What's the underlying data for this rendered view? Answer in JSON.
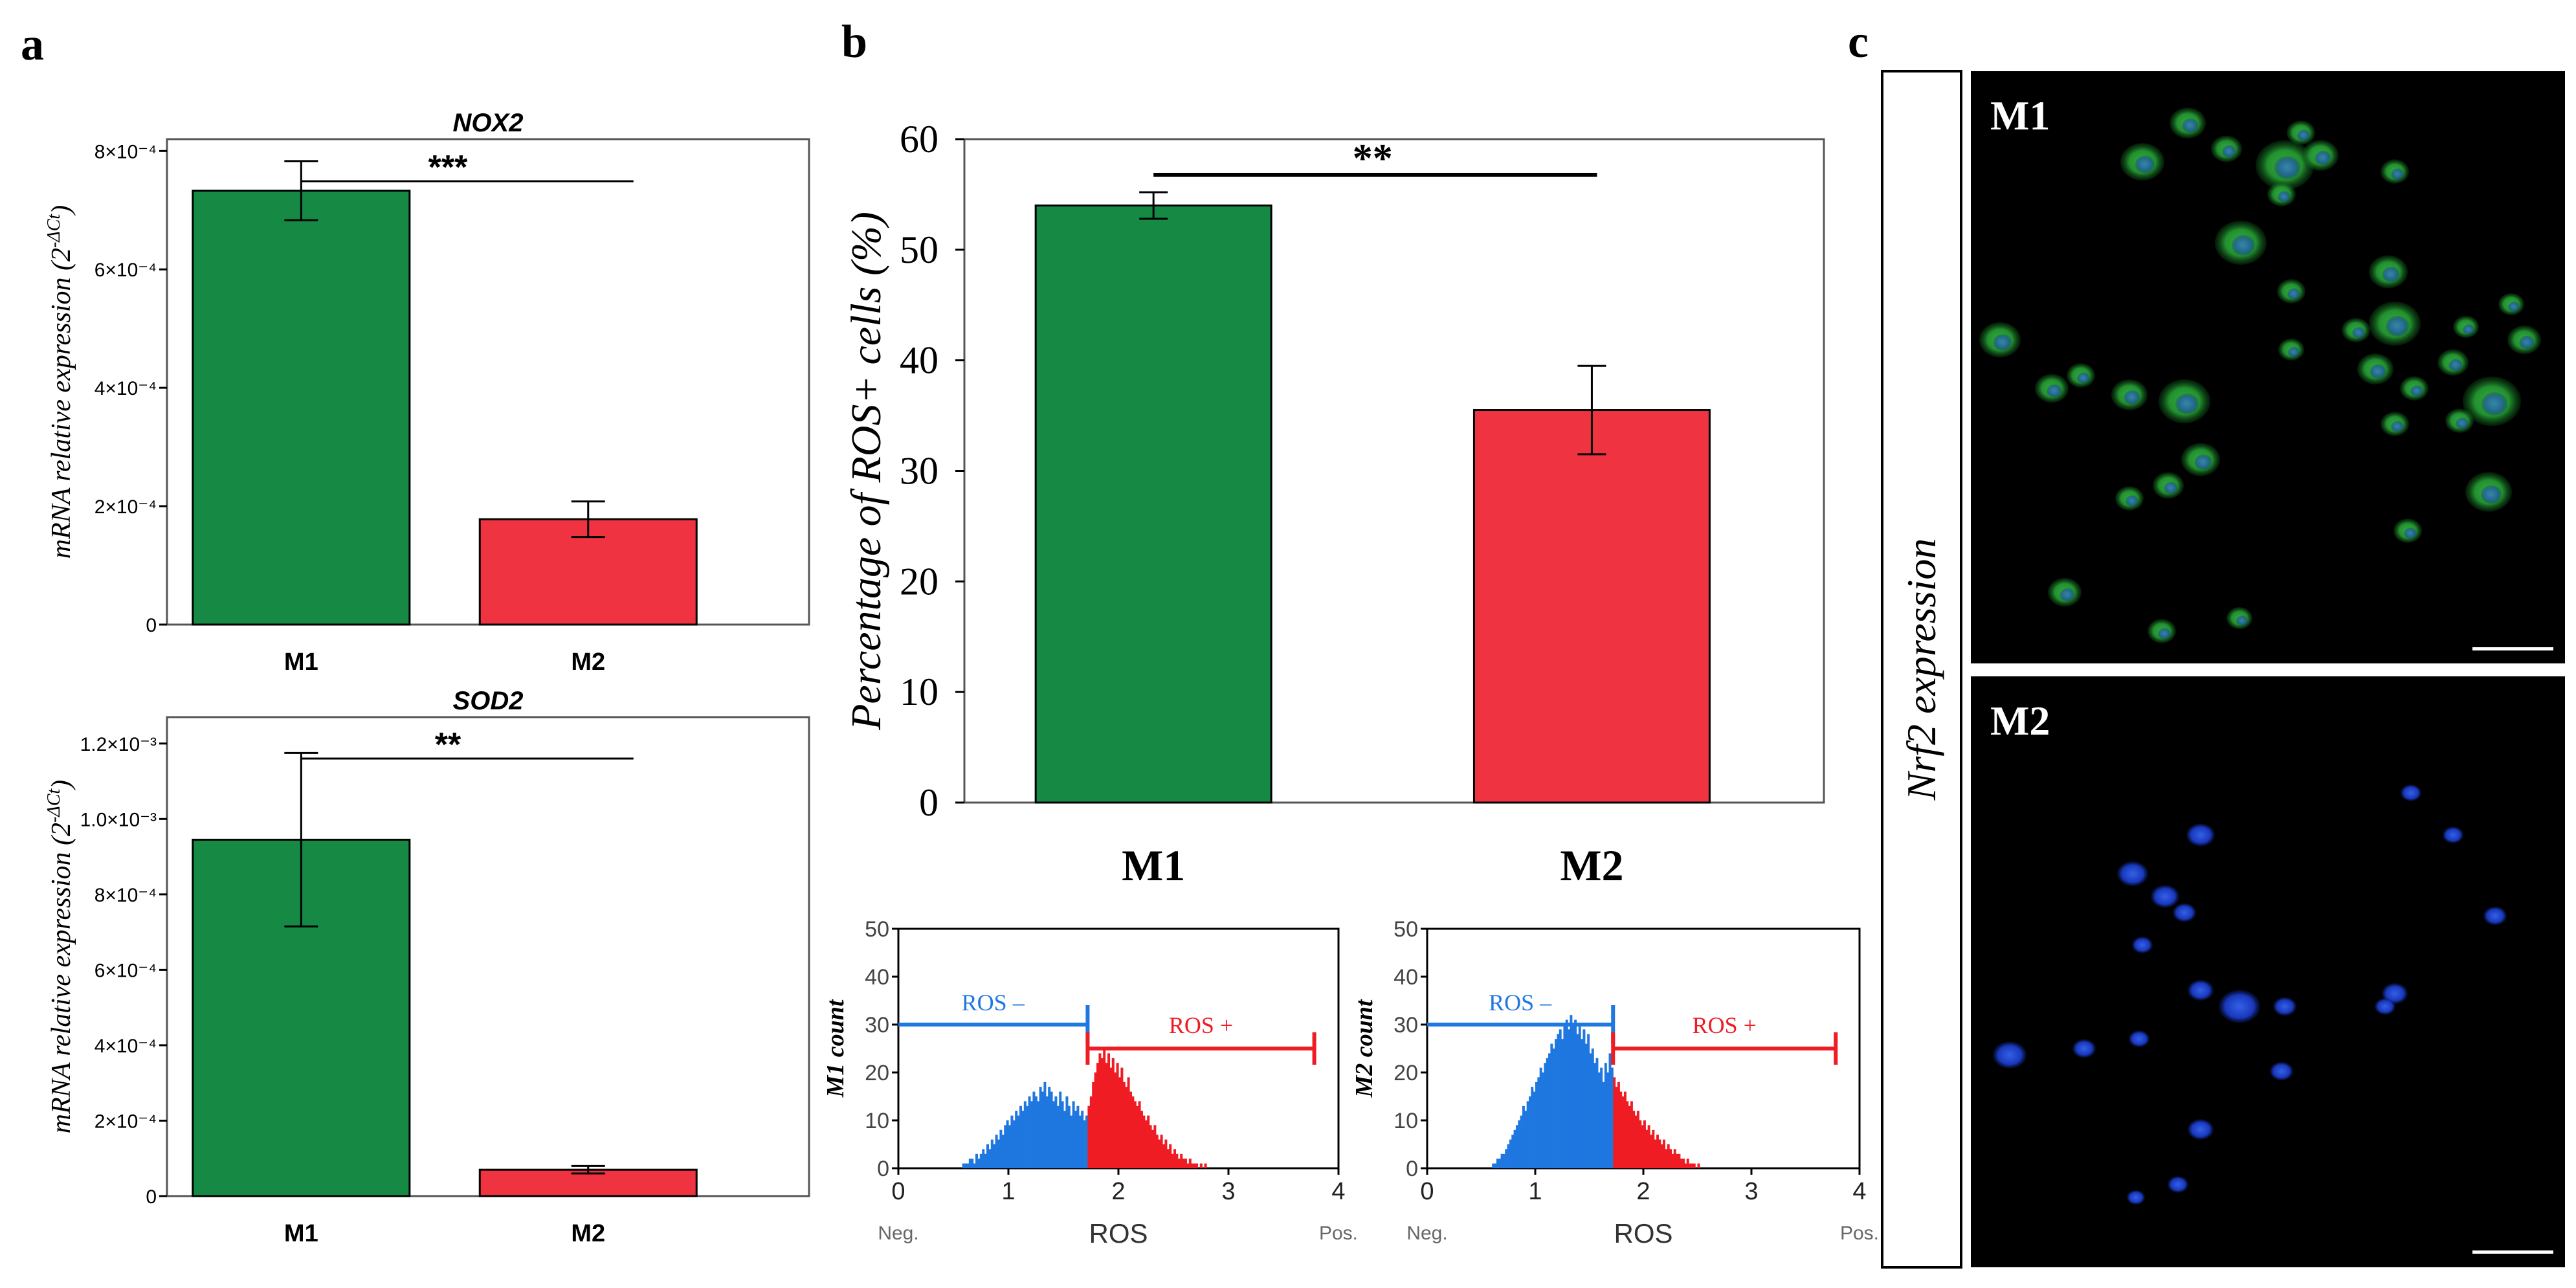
{
  "figure": {
    "panel_a_label": "a",
    "panel_b_label": "b",
    "panel_c_label": "c"
  },
  "colors": {
    "m1": "#168a45",
    "m2": "#ef3340",
    "ros_neg": "#1f77e0",
    "ros_pos": "#ef1c24",
    "micro_bg": "#000000",
    "micro_green": "#2ea83a",
    "micro_blue": "#1a3fd0"
  },
  "chart_data": [
    {
      "id": "nox2",
      "type": "bar",
      "title": "NOX2",
      "ylabel_main": "mRNA relative expression (2",
      "ylabel_sup": "-ΔCt",
      "ylabel_tail": ")",
      "categories": [
        "M1",
        "M2"
      ],
      "values": [
        0.000733,
        0.000178
      ],
      "errors": [
        5e-05,
        3e-05
      ],
      "ylim": [
        0,
        0.00082
      ],
      "ticks": [
        {
          "value": 0,
          "label": "0"
        },
        {
          "value": 0.0002,
          "label": "2×10⁻⁴"
        },
        {
          "value": 0.0004,
          "label": "4×10⁻⁴"
        },
        {
          "value": 0.0006,
          "label": "6×10⁻⁴"
        },
        {
          "value": 0.0008,
          "label": "8×10⁻⁴"
        }
      ],
      "significance": "***"
    },
    {
      "id": "sod2",
      "type": "bar",
      "title": "SOD2",
      "ylabel_main": "mRNA relative expression (2",
      "ylabel_sup": "-ΔCt",
      "ylabel_tail": ")",
      "categories": [
        "M1",
        "M2"
      ],
      "values": [
        0.000945,
        7e-05
      ],
      "errors": [
        0.00023,
        1e-05
      ],
      "ylim": [
        0,
        0.00127
      ],
      "ticks": [
        {
          "value": 0,
          "label": "0"
        },
        {
          "value": 0.0002,
          "label": "2×10⁻⁴"
        },
        {
          "value": 0.0004,
          "label": "4×10⁻⁴"
        },
        {
          "value": 0.0006,
          "label": "6×10⁻⁴"
        },
        {
          "value": 0.0008,
          "label": "8×10⁻⁴"
        },
        {
          "value": 0.001,
          "label": "1.0×10⁻³"
        },
        {
          "value": 0.0012,
          "label": "1.2×10⁻³"
        }
      ],
      "significance": "**"
    },
    {
      "id": "ros_percent",
      "type": "bar",
      "title": "",
      "ylabel": "Percentage of ROS+ cells (%)",
      "categories": [
        "M1",
        "M2"
      ],
      "values": [
        54,
        35.5
      ],
      "errors": [
        1.2,
        4
      ],
      "ylim": [
        0,
        60
      ],
      "ticks": [
        {
          "value": 0,
          "label": "0"
        },
        {
          "value": 10,
          "label": "10"
        },
        {
          "value": 20,
          "label": "20"
        },
        {
          "value": 30,
          "label": "30"
        },
        {
          "value": 40,
          "label": "40"
        },
        {
          "value": 50,
          "label": "50"
        },
        {
          "value": 60,
          "label": "60"
        }
      ],
      "significance": "**"
    },
    {
      "id": "hist_m1",
      "type": "histogram",
      "ylabel": "M1 count",
      "xlabel": "ROS",
      "x_left_label": "Neg.",
      "x_right_label": "Pos.",
      "xlim": [
        0,
        4
      ],
      "ylim": [
        0,
        50
      ],
      "xticks": [
        "0",
        "1",
        "2",
        "3",
        "4"
      ],
      "yticks": [
        "0",
        "10",
        "20",
        "30",
        "40",
        "50"
      ],
      "gate": 1.72,
      "neg_label": "ROS –",
      "pos_label": "ROS +",
      "neg_gate": {
        "from": 0,
        "to": 1.72,
        "y": 30
      },
      "pos_gate": {
        "from": 1.72,
        "to": 3.78,
        "y": 25
      },
      "bin_width": 0.02,
      "counts": [
        0,
        0,
        0,
        0,
        0,
        0,
        0,
        0,
        0,
        0,
        0,
        0,
        0,
        0,
        0,
        0,
        0,
        0,
        0,
        0,
        0,
        0,
        0,
        0,
        0,
        0,
        0,
        0,
        0,
        1,
        1,
        1,
        2,
        2,
        1,
        3,
        2,
        3,
        4,
        3,
        5,
        4,
        6,
        5,
        7,
        6,
        8,
        7,
        9,
        10,
        9,
        11,
        10,
        12,
        11,
        13,
        12,
        14,
        13,
        15,
        14,
        16,
        15,
        14,
        17,
        16,
        18,
        15,
        17,
        16,
        14,
        15,
        13,
        16,
        14,
        12,
        15,
        13,
        11,
        14,
        12,
        13,
        11,
        12,
        10,
        11,
        13,
        15,
        18,
        20,
        22,
        24,
        23,
        25,
        22,
        24,
        21,
        23,
        20,
        22,
        19,
        21,
        18,
        17,
        19,
        16,
        15,
        14,
        13,
        14,
        12,
        11,
        10,
        11,
        9,
        8,
        9,
        7,
        6,
        7,
        5,
        6,
        4,
        5,
        3,
        4,
        3,
        2,
        3,
        2,
        2,
        1,
        2,
        1,
        1,
        1,
        0,
        1,
        0,
        1,
        0,
        0,
        0,
        0,
        0,
        0,
        0,
        0,
        0,
        0,
        0,
        0,
        0,
        0,
        0,
        0,
        0,
        0,
        0,
        0,
        0,
        0,
        0,
        0,
        0,
        0,
        0,
        0,
        0,
        0,
        0,
        0,
        0,
        0,
        0,
        0,
        0,
        0,
        0,
        0,
        0,
        0,
        0,
        0,
        0,
        0,
        0,
        0,
        0,
        0,
        0,
        0,
        0,
        0,
        0,
        0,
        0,
        0,
        0,
        0
      ]
    },
    {
      "id": "hist_m2",
      "type": "histogram",
      "ylabel": "M2 count",
      "xlabel": "ROS",
      "x_left_label": "Neg.",
      "x_right_label": "Pos.",
      "xlim": [
        0,
        4
      ],
      "ylim": [
        0,
        50
      ],
      "xticks": [
        "0",
        "1",
        "2",
        "3",
        "4"
      ],
      "yticks": [
        "0",
        "10",
        "20",
        "30",
        "40",
        "50"
      ],
      "gate": 1.72,
      "neg_label": "ROS –",
      "pos_label": "ROS +",
      "neg_gate": {
        "from": 0,
        "to": 1.72,
        "y": 30
      },
      "pos_gate": {
        "from": 1.72,
        "to": 3.78,
        "y": 25
      },
      "bin_width": 0.02,
      "counts": [
        0,
        0,
        0,
        0,
        0,
        0,
        0,
        0,
        0,
        0,
        0,
        0,
        0,
        0,
        0,
        0,
        0,
        0,
        0,
        0,
        0,
        0,
        0,
        0,
        0,
        0,
        0,
        0,
        0,
        0,
        1,
        1,
        2,
        2,
        3,
        3,
        4,
        5,
        6,
        7,
        8,
        9,
        10,
        11,
        13,
        12,
        14,
        15,
        17,
        16,
        18,
        19,
        21,
        20,
        22,
        23,
        24,
        26,
        25,
        27,
        28,
        29,
        27,
        30,
        31,
        29,
        32,
        30,
        31,
        28,
        30,
        27,
        29,
        26,
        28,
        24,
        25,
        22,
        23,
        20,
        21,
        18,
        22,
        20,
        24,
        21,
        19,
        17,
        18,
        16,
        15,
        16,
        14,
        13,
        14,
        12,
        11,
        12,
        10,
        9,
        10,
        8,
        9,
        7,
        8,
        6,
        7,
        6,
        5,
        6,
        4,
        5,
        4,
        3,
        4,
        3,
        3,
        2,
        2,
        1,
        2,
        1,
        1,
        1,
        0,
        1,
        0,
        0,
        0,
        0,
        0,
        0,
        0,
        0,
        0,
        0,
        0,
        0,
        0,
        0,
        0,
        0,
        0,
        0,
        0,
        0,
        0,
        0,
        0,
        0,
        0,
        0,
        0,
        0,
        0,
        0,
        0,
        0,
        0,
        0,
        0,
        0,
        0,
        0,
        0,
        0,
        0,
        0,
        0,
        0,
        0,
        0,
        0,
        0,
        0,
        0,
        0,
        0,
        0,
        0,
        0,
        0,
        0,
        0,
        0,
        0,
        0,
        0,
        0,
        0,
        0,
        0,
        0,
        0,
        0,
        0,
        0,
        0,
        0,
        0
      ]
    }
  ],
  "microscopy": {
    "side_label": "Nrf2 expression",
    "top_label": "M1",
    "bottom_label": "M2"
  }
}
